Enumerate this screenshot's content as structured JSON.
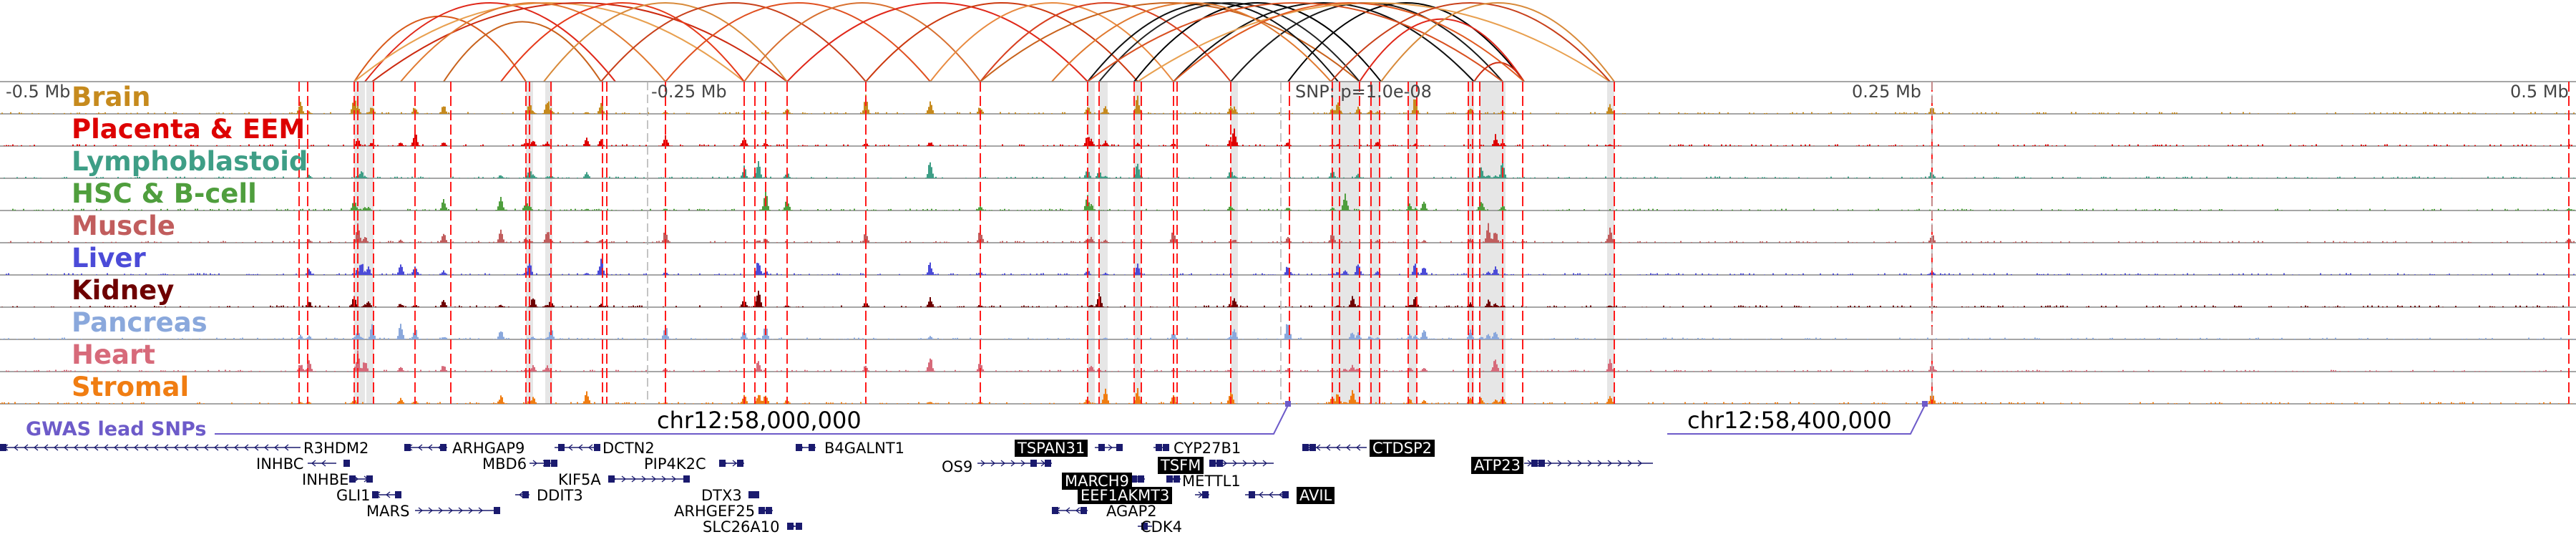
{
  "genome_browser": {
    "scale": {
      "left": "-0.5 Mb",
      "left_mid": "-0.25 Mb",
      "snp": "SNP: p=1.0e-08",
      "right_mid": "0.25 Mb",
      "right": "0.5 Mb"
    },
    "coordinates": {
      "left": "chr12:58,000,000",
      "right": "chr12:58,400,000"
    },
    "gwas_label": "GWAS lead SNPs",
    "tracks": [
      {
        "name": "Brain",
        "color": "#c68a1d"
      },
      {
        "name": "Placenta & EEM",
        "color": "#dd0000"
      },
      {
        "name": "Lymphoblastoid",
        "color": "#3e9e86"
      },
      {
        "name": "HSC & B-cell",
        "color": "#4f9e3d"
      },
      {
        "name": "Muscle",
        "color": "#c15d5d"
      },
      {
        "name": "Liver",
        "color": "#4b4bd8"
      },
      {
        "name": "Kidney",
        "color": "#6e0000"
      },
      {
        "name": "Pancreas",
        "color": "#8aa8dc"
      },
      {
        "name": "Heart",
        "color": "#d76a7a"
      },
      {
        "name": "Stromal",
        "color": "#f07d12"
      }
    ],
    "genes": [
      {
        "name": "R3HDM2",
        "highlight": false
      },
      {
        "name": "INHBC",
        "highlight": false
      },
      {
        "name": "INHBE",
        "highlight": false
      },
      {
        "name": "GLI1",
        "highlight": false
      },
      {
        "name": "MARS",
        "highlight": false
      },
      {
        "name": "ARHGAP9",
        "highlight": false
      },
      {
        "name": "MBD6",
        "highlight": false
      },
      {
        "name": "DDIT3",
        "highlight": false
      },
      {
        "name": "DCTN2",
        "highlight": false
      },
      {
        "name": "KIF5A",
        "highlight": false
      },
      {
        "name": "PIP4K2C",
        "highlight": false
      },
      {
        "name": "DTX3",
        "highlight": false
      },
      {
        "name": "ARHGEF25",
        "highlight": false
      },
      {
        "name": "SLC26A10",
        "highlight": false
      },
      {
        "name": "B4GALNT1",
        "highlight": false
      },
      {
        "name": "OS9",
        "highlight": false
      },
      {
        "name": "TSPAN31",
        "highlight": true
      },
      {
        "name": "CYP27B1",
        "highlight": false
      },
      {
        "name": "TSFM",
        "highlight": true
      },
      {
        "name": "METTL1",
        "highlight": false
      },
      {
        "name": "MARCH9",
        "highlight": true
      },
      {
        "name": "EEF1AKMT3",
        "highlight": true
      },
      {
        "name": "AGAP2",
        "highlight": false
      },
      {
        "name": "CDK4",
        "highlight": false
      },
      {
        "name": "AVIL",
        "highlight": true
      },
      {
        "name": "CTDSP2",
        "highlight": true
      },
      {
        "name": "ATP23",
        "highlight": true
      }
    ]
  }
}
